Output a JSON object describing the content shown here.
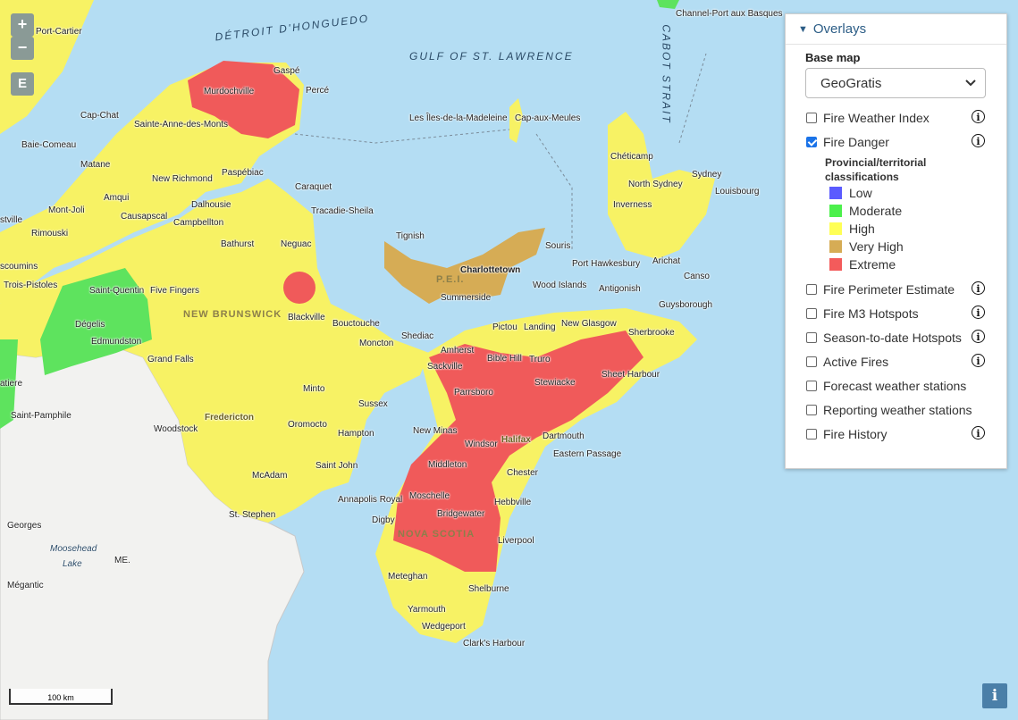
{
  "map": {
    "zoom_in": "+",
    "zoom_out": "−",
    "export": "E",
    "scale": "100 km",
    "info": "i",
    "water_labels": [
      {
        "text": "DÉTROIT D'HONGUEDO"
      },
      {
        "text": "GULF OF ST. LAWRENCE"
      },
      {
        "text": "CABOT STRAIT"
      }
    ],
    "region_labels": [
      "NEW BRUNSWICK",
      "P.E.I.",
      "NOVA SCOTIA",
      "ME."
    ],
    "water_small": [
      "Moosehead",
      "Lake"
    ],
    "places": [
      "Channel-Port aux Basques",
      "Port-Cartier",
      "Gaspé",
      "Murdochville",
      "Percé",
      "Cap-Chat",
      "Sainte-Anne-des-Monts",
      "Les Îles-de-la-Madeleine",
      "Cap-aux-Meules",
      "Baie-Comeau",
      "Matane",
      "Paspébiac",
      "New Richmond",
      "Amqui",
      "Caraquet",
      "Chéticamp",
      "Sydney",
      "North Sydney",
      "Louisbourg",
      "Mont-Joli",
      "Causapscal",
      "Dalhousie",
      "Campbellton",
      "Tracadie-Sheila",
      "Inverness",
      "Rimouski",
      "Tignish",
      "Bathurst",
      "Neguac",
      "Souris",
      "Charlottetown",
      "Port Hawkesbury",
      "Arichat",
      "stville",
      "scoumins",
      "Trois-Pistoles",
      "Saint-Quentin",
      "Five Fingers",
      "Summerside",
      "Wood Islands",
      "Antigonish",
      "Canso",
      "Guysborough",
      "Dégelis",
      "Blackville",
      "Bouctouche",
      "Pictou",
      "Landing",
      "New Glasgow",
      "Edmundston",
      "Moncton",
      "Shediac",
      "Sherbrooke",
      "Amherst",
      "Grand Falls",
      "Sackville",
      "Bible Hill",
      "Truro",
      "Sheet Harbour",
      "atiere",
      "Minto",
      "Parrsboro",
      "Stewiacke",
      "Saint-Pamphile",
      "Sussex",
      "Fredericton",
      "Oromocto",
      "Woodstock",
      "Hampton",
      "New Minas",
      "Halifax",
      "Dartmouth",
      "Windsor",
      "Eastern Passage",
      "Middleton",
      "Saint John",
      "Chester",
      "McAdam",
      "Annapolis Royal",
      "Moschelle",
      "Hebbville",
      "St. Stephen",
      "Digby",
      "Bridgewater",
      "Liverpool",
      "Georges",
      "Mégantic",
      "Meteghan",
      "Shelburne",
      "Yarmouth",
      "Wedgeport",
      "Clark's Harbour"
    ]
  },
  "panel": {
    "title": "Overlays",
    "base_map_label": "Base map",
    "base_map_value": "GeoGratis",
    "layers": [
      {
        "label": "Fire Weather Index",
        "checked": false,
        "info": true
      },
      {
        "label": "Fire Danger",
        "checked": true,
        "info": true
      },
      {
        "label": "Fire Perimeter Estimate",
        "checked": false,
        "info": true
      },
      {
        "label": "Fire M3 Hotspots",
        "checked": false,
        "info": true
      },
      {
        "label": "Season-to-date Hotspots",
        "checked": false,
        "info": true
      },
      {
        "label": "Active Fires",
        "checked": false,
        "info": true
      },
      {
        "label": "Forecast weather stations",
        "checked": false,
        "info": false
      },
      {
        "label": "Reporting weather stations",
        "checked": false,
        "info": false
      },
      {
        "label": "Fire History",
        "checked": false,
        "info": true
      }
    ],
    "legend_title": "Provincial/territorial classifications",
    "legend": [
      {
        "label": "Low",
        "color": "#5b5bff"
      },
      {
        "label": "Moderate",
        "color": "#4cf04c"
      },
      {
        "label": "High",
        "color": "#ffff55"
      },
      {
        "label": "Very High",
        "color": "#d6ac55"
      },
      {
        "label": "Extreme",
        "color": "#f35b5b"
      }
    ]
  },
  "colors": {
    "water": "#b4ddf3",
    "land_us": "#f2f2f0",
    "high": "#f7f264",
    "moderate": "#5ee35e",
    "very_high": "#d6ac55",
    "extreme": "#f05a5a"
  }
}
